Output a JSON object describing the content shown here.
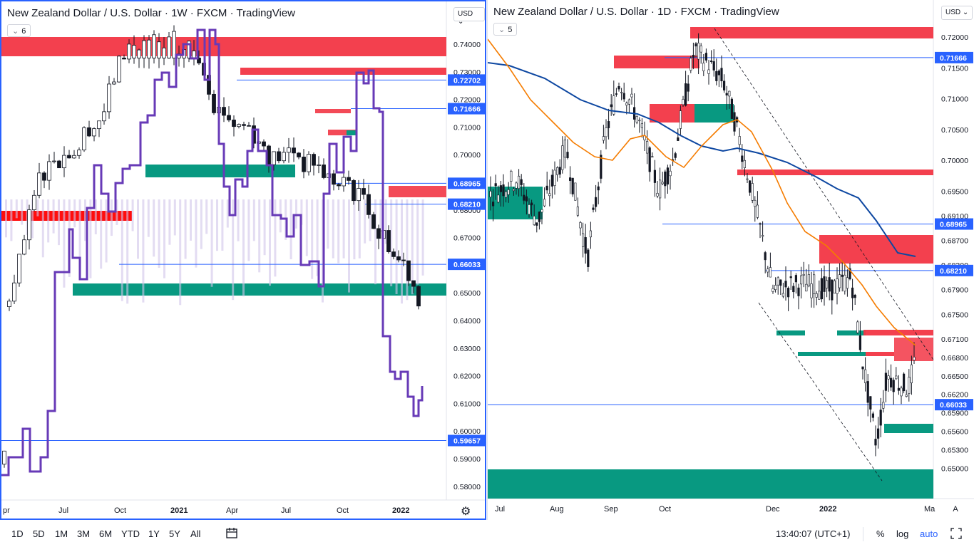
{
  "left": {
    "title": "New Zealand Dollar / U.S. Dollar · 1W · FXCM · TradingView",
    "indicator_count": "6",
    "currency": "USD",
    "price_ticks": [
      "0.74000",
      "0.73000",
      "0.72000",
      "0.71000",
      "0.70000",
      "0.69000",
      "0.68000",
      "0.67000",
      "0.65000",
      "0.64000",
      "0.63000",
      "0.62000",
      "0.61000",
      "0.60000",
      "0.59000",
      "0.58000"
    ],
    "price_labels": [
      {
        "value": "0.72702",
        "color": "#2962ff"
      },
      {
        "value": "0.71666",
        "color": "#2962ff"
      },
      {
        "value": "0.68965",
        "color": "#2962ff"
      },
      {
        "value": "0.68210",
        "color": "#2962ff"
      },
      {
        "value": "0.66033",
        "color": "#2962ff"
      },
      {
        "value": "0.59657",
        "color": "#2962ff"
      }
    ],
    "time_labels": [
      "pr",
      "Jul",
      "Oct",
      "2021",
      "Apr",
      "Jul",
      "Oct",
      "2022"
    ],
    "settings_icon": "gear-icon"
  },
  "right": {
    "title": "New Zealand Dollar / U.S. Dollar · 1D · FXCM · TradingView",
    "indicator_count": "5",
    "currency": "USD",
    "price_ticks": [
      "0.72000",
      "0.71500",
      "0.71000",
      "0.70500",
      "0.70000",
      "0.69500",
      "0.69100",
      "0.68700",
      "0.68300",
      "0.67900",
      "0.67500",
      "0.67100",
      "0.66800",
      "0.66500",
      "0.66200",
      "0.65900",
      "0.65600",
      "0.65300",
      "0.65000"
    ],
    "price_labels": [
      {
        "value": "0.71666",
        "color": "#2962ff"
      },
      {
        "value": "0.68965",
        "color": "#2962ff"
      },
      {
        "value": "0.68210",
        "color": "#2962ff"
      },
      {
        "value": "0.66033",
        "color": "#2962ff"
      }
    ],
    "time_labels": [
      "Jul",
      "Aug",
      "Sep",
      "Oct",
      "Dec",
      "2022",
      "Ma"
    ],
    "auto_label": "A"
  },
  "bottom": {
    "timeframes": [
      "1D",
      "5D",
      "1M",
      "3M",
      "6M",
      "YTD",
      "1Y",
      "5Y",
      "All"
    ],
    "compare_icon": "date-range-icon",
    "clock": "13:40:07 (UTC+1)",
    "percent": "%",
    "log": "log",
    "auto": "auto",
    "fullscreen_icon": "fullscreen-icon"
  },
  "colors": {
    "red_zone": "#f23645",
    "green_zone": "#089981",
    "line_blue": "#2962ff",
    "purple": "#673ab7",
    "orange": "#f57c00",
    "navy": "#0d47a1"
  }
}
